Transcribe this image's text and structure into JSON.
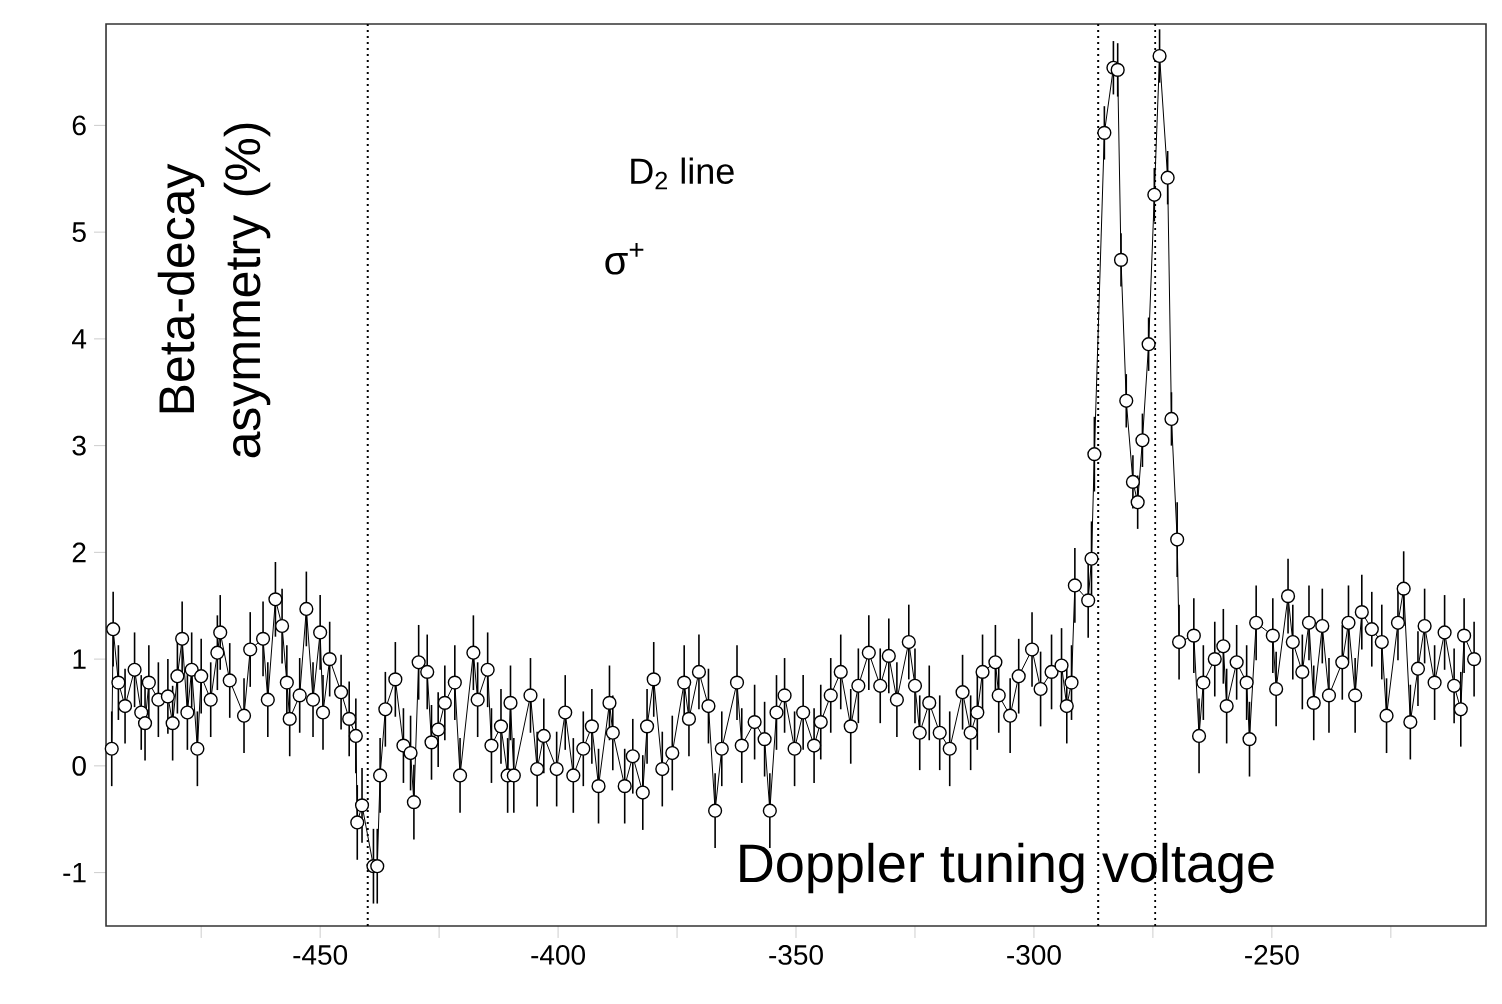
{
  "chart_data": {
    "type": "line",
    "xlabel": "Doppler tuning voltage",
    "ylabel": "Beta-decay asymmetry (%)",
    "annotations": [
      "D$_{2}$ line",
      "σ$^{+}$"
    ],
    "x": [
      -493.8,
      -493.5,
      -492.4,
      -491.0,
      -489.0,
      -487.6,
      -486.8,
      -486.0,
      -484.0,
      -482.0,
      -481.0,
      -480.0,
      -479.0,
      -477.9,
      -477.0,
      -475.8,
      -475.0,
      -473.0,
      -471.6,
      -471.0,
      -469.0,
      -466.0,
      -464.7,
      -462.0,
      -461.0,
      -459.4,
      -458.0,
      -457.0,
      -456.4,
      -454.3,
      -452.9,
      -451.5,
      -450.0,
      -449.4,
      -448.0,
      -445.6,
      -443.9,
      -442.5,
      -442.2,
      -441.2,
      -438.8,
      -438.0,
      -437.4,
      -436.3,
      -434.2,
      -432.5,
      -431.0,
      -430.3,
      -429.3,
      -427.5,
      -426.6,
      -425.2,
      -423.8,
      -421.7,
      -420.6,
      -417.8,
      -416.9,
      -414.8,
      -414.0,
      -412.0,
      -410.6,
      -410.0,
      -409.3,
      -405.8,
      -404.4,
      -403.0,
      -400.3,
      -398.5,
      -396.8,
      -394.7,
      -392.9,
      -391.5,
      -389.2,
      -388.5,
      -386.0,
      -384.3,
      -382.2,
      -381.3,
      -379.9,
      -378.1,
      -376.0,
      -373.5,
      -372.5,
      -370.4,
      -368.4,
      -367.0,
      -365.6,
      -362.4,
      -361.4,
      -358.7,
      -356.6,
      -355.5,
      -354.1,
      -352.4,
      -350.3,
      -348.5,
      -346.2,
      -344.8,
      -342.7,
      -340.6,
      -338.5,
      -336.9,
      -334.7,
      -332.3,
      -330.5,
      -328.8,
      -326.3,
      -325.0,
      -324.0,
      -322.0,
      -319.8,
      -317.7,
      -315.0,
      -313.3,
      -311.9,
      -310.8,
      -308.1,
      -307.4,
      -305.0,
      -303.2,
      -300.4,
      -298.6,
      -296.3,
      -294.2,
      -293.1,
      -292.1,
      -291.4,
      -288.6,
      -287.9,
      -287.3,
      -285.2,
      -283.3,
      -282.4,
      -281.7,
      -280.6,
      -279.2,
      -278.2,
      -277.2,
      -275.9,
      -274.7,
      -273.6,
      -271.9,
      -271.1,
      -269.9,
      -269.5,
      -266.4,
      -265.3,
      -264.4,
      -262.0,
      -260.2,
      -259.5,
      -257.4,
      -255.3,
      -254.7,
      -253.3,
      -249.8,
      -249.1,
      -246.6,
      -245.6,
      -243.6,
      -242.2,
      -241.2,
      -239.4,
      -238.0,
      -235.2,
      -233.9,
      -232.5,
      -231.1,
      -229.0,
      -226.9,
      -225.9,
      -223.5,
      -222.3,
      -220.9,
      -219.3,
      -217.9,
      -215.8,
      -213.7,
      -211.7,
      -210.3,
      -209.6,
      -207.5
    ],
    "values": [
      0.16,
      1.28,
      0.78,
      0.56,
      0.9,
      0.5,
      0.4,
      0.78,
      0.62,
      0.65,
      0.4,
      0.84,
      1.19,
      0.5,
      0.9,
      0.16,
      0.84,
      0.62,
      1.06,
      1.25,
      0.8,
      0.47,
      1.09,
      1.19,
      0.62,
      1.56,
      1.31,
      0.78,
      0.44,
      0.66,
      1.47,
      0.62,
      1.25,
      0.5,
      1.0,
      0.69,
      0.44,
      0.28,
      -0.53,
      -0.37,
      -0.94,
      -0.94,
      -0.09,
      0.53,
      0.81,
      0.19,
      0.12,
      -0.34,
      0.97,
      0.88,
      0.22,
      0.34,
      0.59,
      0.78,
      -0.09,
      1.06,
      0.62,
      0.9,
      0.19,
      0.37,
      -0.09,
      0.59,
      -0.09,
      0.66,
      -0.03,
      0.28,
      -0.03,
      0.5,
      -0.09,
      0.16,
      0.37,
      -0.19,
      0.59,
      0.31,
      -0.19,
      0.09,
      -0.25,
      0.37,
      0.81,
      -0.03,
      0.12,
      0.78,
      0.44,
      0.88,
      0.56,
      -0.42,
      0.16,
      0.78,
      0.19,
      0.41,
      0.25,
      -0.42,
      0.5,
      0.66,
      0.16,
      0.5,
      0.19,
      0.41,
      0.66,
      0.88,
      0.37,
      0.75,
      1.06,
      0.75,
      1.03,
      0.62,
      1.16,
      0.75,
      0.31,
      0.59,
      0.31,
      0.16,
      0.69,
      0.31,
      0.5,
      0.88,
      0.97,
      0.66,
      0.47,
      0.84,
      1.09,
      0.72,
      0.88,
      0.94,
      0.56,
      0.78,
      1.69,
      1.55,
      1.94,
      2.92,
      5.93,
      6.54,
      6.52,
      4.74,
      3.42,
      2.66,
      2.47,
      3.05,
      3.95,
      5.35,
      6.65,
      5.51,
      3.25,
      2.12,
      1.16,
      1.22,
      0.28,
      0.78,
      1.0,
      1.12,
      0.56,
      0.97,
      0.78,
      0.25,
      1.34,
      1.22,
      0.72,
      1.59,
      1.16,
      0.88,
      1.34,
      0.59,
      1.31,
      0.66,
      0.97,
      1.34,
      0.66,
      1.44,
      1.28,
      1.16,
      0.47,
      1.34,
      1.66,
      0.41,
      0.91,
      1.31,
      0.78,
      1.25,
      0.75,
      0.53,
      1.22,
      1.0
    ],
    "errors": [
      0.35,
      0.35,
      0.35,
      0.35,
      0.35,
      0.35,
      0.35,
      0.35,
      0.35,
      0.35,
      0.35,
      0.35,
      0.35,
      0.35,
      0.35,
      0.35,
      0.35,
      0.35,
      0.35,
      0.35,
      0.35,
      0.35,
      0.35,
      0.35,
      0.35,
      0.35,
      0.35,
      0.35,
      0.35,
      0.35,
      0.35,
      0.35,
      0.35,
      0.35,
      0.35,
      0.35,
      0.35,
      0.35,
      0.35,
      0.35,
      0.35,
      0.35,
      0.35,
      0.35,
      0.35,
      0.35,
      0.35,
      0.35,
      0.35,
      0.35,
      0.35,
      0.35,
      0.35,
      0.35,
      0.35,
      0.35,
      0.35,
      0.35,
      0.35,
      0.35,
      0.35,
      0.35,
      0.35,
      0.35,
      0.35,
      0.35,
      0.35,
      0.35,
      0.35,
      0.35,
      0.35,
      0.35,
      0.35,
      0.35,
      0.35,
      0.35,
      0.35,
      0.35,
      0.35,
      0.35,
      0.35,
      0.35,
      0.35,
      0.35,
      0.35,
      0.35,
      0.35,
      0.35,
      0.35,
      0.35,
      0.35,
      0.35,
      0.35,
      0.35,
      0.35,
      0.35,
      0.35,
      0.35,
      0.35,
      0.35,
      0.35,
      0.35,
      0.35,
      0.35,
      0.35,
      0.35,
      0.35,
      0.35,
      0.35,
      0.35,
      0.35,
      0.35,
      0.35,
      0.35,
      0.35,
      0.35,
      0.35,
      0.35,
      0.35,
      0.35,
      0.35,
      0.35,
      0.35,
      0.35,
      0.35,
      0.35,
      0.35,
      0.35,
      0.35,
      0.35,
      0.25,
      0.25,
      0.25,
      0.25,
      0.25,
      0.25,
      0.25,
      0.25,
      0.25,
      0.25,
      0.25,
      0.25,
      0.25,
      0.35,
      0.35,
      0.35,
      0.35,
      0.35,
      0.35,
      0.35,
      0.35,
      0.35,
      0.35,
      0.35,
      0.35,
      0.35,
      0.35,
      0.35,
      0.35,
      0.35,
      0.35,
      0.35,
      0.35,
      0.35,
      0.35,
      0.35,
      0.35,
      0.35,
      0.35,
      0.35,
      0.35,
      0.35,
      0.35,
      0.35,
      0.35,
      0.35,
      0.35,
      0.35,
      0.35,
      0.35,
      0.35,
      0.35
    ],
    "color": "#000000",
    "marker": "circle",
    "line_style": "solid",
    "xlim": [
      -495,
      -205
    ],
    "ylim": [
      -1.5,
      6.95
    ],
    "xticks": [
      {
        "value": -475,
        "label": null
      },
      -450,
      {
        "value": -425,
        "label": null
      },
      -400,
      {
        "value": -375,
        "label": null
      },
      -350,
      {
        "value": -325,
        "label": null
      },
      -300,
      {
        "value": -275,
        "label": null
      },
      -250,
      {
        "value": -225,
        "label": null
      }
    ],
    "yticks": [
      -1,
      0,
      1,
      2,
      3,
      4,
      5,
      6
    ],
    "ref_lines": [
      {
        "axis": "x",
        "value": -440,
        "line_style": "dotted"
      },
      {
        "axis": "x",
        "value": -286.5,
        "line_style": "dotted"
      },
      {
        "axis": "x",
        "value": -274.5,
        "line_style": "dotted"
      }
    ]
  }
}
